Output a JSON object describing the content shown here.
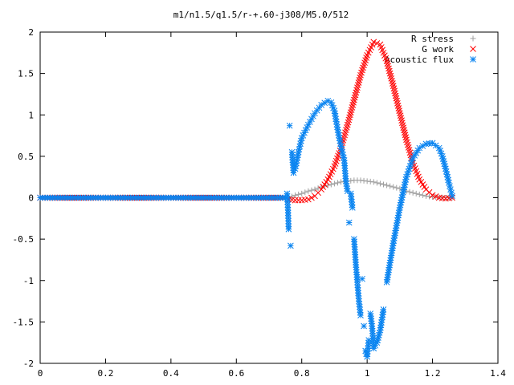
{
  "chart_data": {
    "type": "scatter",
    "title": "m1/n1.5/q1.5/r-+.60-j308/M5.0/512",
    "xlabel": "",
    "ylabel": "",
    "xlim": [
      0,
      1.4
    ],
    "ylim": [
      -2,
      2
    ],
    "x_ticks": [
      "0",
      "0.2",
      "0.4",
      "0.6",
      "0.8",
      "1",
      "1.2",
      "1.4"
    ],
    "y_ticks": [
      "2",
      "1.5",
      "1",
      "0.5",
      "0",
      "-0.5",
      "-1",
      "-1.5",
      "-2"
    ],
    "grid": false,
    "legend_position": "top-right",
    "series": [
      {
        "name": "R stress",
        "marker": "plus",
        "color": "#a0a0a0",
        "points": [
          [
            0.0,
            0.0
          ],
          [
            0.2,
            0.0
          ],
          [
            0.4,
            0.0
          ],
          [
            0.6,
            0.0
          ],
          [
            0.75,
            0.0
          ],
          [
            0.76,
            0.0
          ],
          [
            0.78,
            0.03
          ],
          [
            0.8,
            0.05
          ],
          [
            0.82,
            0.08
          ],
          [
            0.84,
            0.1
          ],
          [
            0.86,
            0.13
          ],
          [
            0.88,
            0.15
          ],
          [
            0.9,
            0.17
          ],
          [
            0.92,
            0.19
          ],
          [
            0.94,
            0.2
          ],
          [
            0.96,
            0.21
          ],
          [
            0.98,
            0.21
          ],
          [
            1.0,
            0.2
          ],
          [
            1.02,
            0.19
          ],
          [
            1.04,
            0.17
          ],
          [
            1.06,
            0.15
          ],
          [
            1.08,
            0.13
          ],
          [
            1.1,
            0.11
          ],
          [
            1.12,
            0.08
          ],
          [
            1.14,
            0.06
          ],
          [
            1.16,
            0.04
          ],
          [
            1.18,
            0.02
          ],
          [
            1.2,
            0.01
          ],
          [
            1.22,
            0.005
          ],
          [
            1.24,
            0.0
          ],
          [
            1.26,
            0.0
          ]
        ]
      },
      {
        "name": "G work",
        "marker": "cross",
        "color": "#ff0000",
        "points": [
          [
            0.0,
            0.0
          ],
          [
            0.2,
            0.0
          ],
          [
            0.4,
            0.0
          ],
          [
            0.6,
            0.0
          ],
          [
            0.75,
            0.0
          ],
          [
            0.76,
            -0.02
          ],
          [
            0.78,
            -0.03
          ],
          [
            0.8,
            -0.03
          ],
          [
            0.82,
            -0.02
          ],
          [
            0.84,
            0.02
          ],
          [
            0.86,
            0.1
          ],
          [
            0.88,
            0.22
          ],
          [
            0.9,
            0.38
          ],
          [
            0.92,
            0.6
          ],
          [
            0.94,
            0.88
          ],
          [
            0.96,
            1.18
          ],
          [
            0.98,
            1.48
          ],
          [
            1.0,
            1.72
          ],
          [
            1.02,
            1.88
          ],
          [
            1.04,
            1.85
          ],
          [
            1.06,
            1.65
          ],
          [
            1.08,
            1.35
          ],
          [
            1.1,
            1.02
          ],
          [
            1.12,
            0.7
          ],
          [
            1.14,
            0.42
          ],
          [
            1.16,
            0.22
          ],
          [
            1.18,
            0.1
          ],
          [
            1.2,
            0.03
          ],
          [
            1.22,
            0.0
          ],
          [
            1.24,
            -0.01
          ],
          [
            1.26,
            0.0
          ]
        ]
      },
      {
        "name": "Acoustic flux",
        "marker": "star",
        "color": "#0a84f0",
        "points": [
          [
            0.0,
            0.0
          ],
          [
            0.1,
            0.0
          ],
          [
            0.2,
            0.0
          ],
          [
            0.3,
            0.0
          ],
          [
            0.4,
            0.0
          ],
          [
            0.5,
            0.0
          ],
          [
            0.6,
            0.0
          ],
          [
            0.7,
            0.0
          ],
          [
            0.75,
            0.0
          ],
          [
            0.755,
            0.05
          ],
          [
            0.758,
            -0.15
          ],
          [
            0.76,
            -0.38
          ],
          [
            0.763,
            0.87
          ],
          [
            0.766,
            -0.58
          ],
          [
            0.77,
            0.55
          ],
          [
            0.775,
            0.3
          ],
          [
            0.78,
            0.35
          ],
          [
            0.79,
            0.55
          ],
          [
            0.8,
            0.72
          ],
          [
            0.82,
            0.88
          ],
          [
            0.84,
            1.02
          ],
          [
            0.86,
            1.12
          ],
          [
            0.88,
            1.17
          ],
          [
            0.89,
            1.15
          ],
          [
            0.9,
            1.05
          ],
          [
            0.91,
            0.82
          ],
          [
            0.92,
            0.62
          ],
          [
            0.93,
            0.45
          ],
          [
            0.935,
            0.2
          ],
          [
            0.94,
            0.08
          ],
          [
            0.945,
            -0.3
          ],
          [
            0.95,
            0.05
          ],
          [
            0.955,
            -0.12
          ],
          [
            0.96,
            -0.5
          ],
          [
            0.965,
            -0.78
          ],
          [
            0.97,
            -1.02
          ],
          [
            0.975,
            -1.25
          ],
          [
            0.98,
            -1.42
          ],
          [
            0.985,
            -0.98
          ],
          [
            0.99,
            -1.55
          ],
          [
            0.995,
            -1.85
          ],
          [
            1.0,
            -1.92
          ],
          [
            1.005,
            -1.72
          ],
          [
            1.01,
            -1.4
          ],
          [
            1.015,
            -1.55
          ],
          [
            1.02,
            -1.82
          ],
          [
            1.03,
            -1.75
          ],
          [
            1.04,
            -1.6
          ],
          [
            1.05,
            -1.35
          ],
          [
            1.06,
            -1.02
          ],
          [
            1.08,
            -0.55
          ],
          [
            1.1,
            -0.12
          ],
          [
            1.12,
            0.25
          ],
          [
            1.14,
            0.48
          ],
          [
            1.16,
            0.6
          ],
          [
            1.18,
            0.65
          ],
          [
            1.2,
            0.66
          ],
          [
            1.22,
            0.6
          ],
          [
            1.23,
            0.5
          ],
          [
            1.24,
            0.35
          ],
          [
            1.25,
            0.18
          ],
          [
            1.255,
            0.1
          ],
          [
            1.26,
            0.02
          ]
        ]
      }
    ]
  }
}
